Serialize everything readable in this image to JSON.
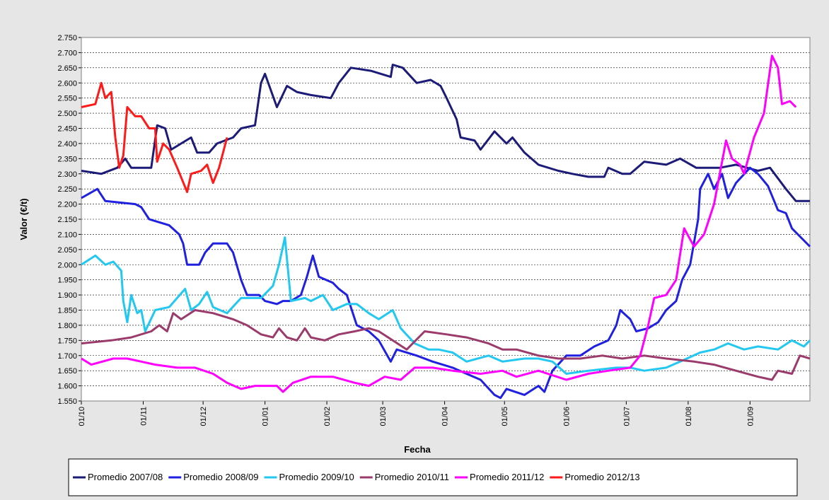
{
  "chart_data": {
    "type": "line",
    "x_label": "Fecha",
    "y_label": "Valor (€/t)",
    "xlim": [
      0,
      365
    ],
    "ylim": [
      1550,
      2750
    ],
    "grid": true,
    "legend": "bottom",
    "xticks": [
      {
        "value": 0,
        "label": "01/10"
      },
      {
        "value": 31,
        "label": "01/11"
      },
      {
        "value": 61,
        "label": "01/12"
      },
      {
        "value": 92,
        "label": "01/01"
      },
      {
        "value": 123,
        "label": "01/02"
      },
      {
        "value": 151,
        "label": "01/03"
      },
      {
        "value": 182,
        "label": "01/04"
      },
      {
        "value": 212,
        "label": "01/05"
      },
      {
        "value": 243,
        "label": "01/06"
      },
      {
        "value": 273,
        "label": "01/07"
      },
      {
        "value": 304,
        "label": "01/08"
      },
      {
        "value": 335,
        "label": "01/09"
      }
    ],
    "yticks": [
      {
        "value": 1550,
        "label": "1.550"
      },
      {
        "value": 1600,
        "label": "1.600"
      },
      {
        "value": 1650,
        "label": "1.650"
      },
      {
        "value": 1700,
        "label": "1.700"
      },
      {
        "value": 1750,
        "label": "1.750"
      },
      {
        "value": 1800,
        "label": "1.800"
      },
      {
        "value": 1850,
        "label": "1.850"
      },
      {
        "value": 1900,
        "label": "1.900"
      },
      {
        "value": 1950,
        "label": "1.950"
      },
      {
        "value": 2000,
        "label": "2.000"
      },
      {
        "value": 2050,
        "label": "2.050"
      },
      {
        "value": 2100,
        "label": "2.100"
      },
      {
        "value": 2150,
        "label": "2.150"
      },
      {
        "value": 2200,
        "label": "2.200"
      },
      {
        "value": 2250,
        "label": "2.250"
      },
      {
        "value": 2300,
        "label": "2.300"
      },
      {
        "value": 2350,
        "label": "2.350"
      },
      {
        "value": 2400,
        "label": "2.400"
      },
      {
        "value": 2450,
        "label": "2.450"
      },
      {
        "value": 2500,
        "label": "2.500"
      },
      {
        "value": 2550,
        "label": "2.550"
      },
      {
        "value": 2600,
        "label": "2.600"
      },
      {
        "value": 2650,
        "label": "2.650"
      },
      {
        "value": 2700,
        "label": "2.700"
      },
      {
        "value": 2750,
        "label": "2.750"
      }
    ],
    "series": [
      {
        "name": "Promedio 2007/08",
        "color": "#1c1c78",
        "x": [
          0,
          10,
          18,
          22,
          25,
          35,
          38,
          42,
          45,
          50,
          55,
          58,
          64,
          68,
          76,
          80,
          87,
          90,
          92,
          98,
          103,
          108,
          115,
          125,
          129,
          135,
          145,
          155,
          156,
          161,
          168,
          175,
          180,
          183,
          188,
          190,
          197,
          200,
          207,
          213,
          216,
          222,
          229,
          239,
          246,
          254,
          262,
          264,
          271,
          275,
          282,
          293,
          300,
          308,
          320,
          328,
          339,
          345,
          353,
          358,
          365
        ],
        "values": [
          2310,
          2300,
          2320,
          2350,
          2320,
          2320,
          2460,
          2450,
          2380,
          2400,
          2420,
          2370,
          2370,
          2400,
          2420,
          2450,
          2460,
          2600,
          2630,
          2520,
          2590,
          2570,
          2560,
          2550,
          2600,
          2650,
          2640,
          2620,
          2660,
          2650,
          2600,
          2610,
          2590,
          2550,
          2480,
          2420,
          2410,
          2380,
          2440,
          2400,
          2420,
          2370,
          2330,
          2310,
          2300,
          2290,
          2290,
          2320,
          2300,
          2300,
          2340,
          2330,
          2350,
          2320,
          2320,
          2330,
          2310,
          2320,
          2250,
          2210,
          2210
        ]
      },
      {
        "name": "Promedio 2008/09",
        "color": "#2020e0",
        "x": [
          0,
          8,
          12,
          27,
          30,
          34,
          39,
          44,
          49,
          51,
          53,
          59,
          62,
          66,
          73,
          76,
          80,
          83,
          89,
          92,
          98,
          101,
          105,
          110,
          113,
          116,
          119,
          126,
          129,
          133,
          135,
          138,
          144,
          149,
          155,
          158,
          168,
          176,
          186,
          193,
          200,
          207,
          210,
          213,
          222,
          229,
          232,
          236,
          243,
          250,
          257,
          264,
          268,
          270,
          275,
          278,
          284,
          289,
          293,
          298,
          301,
          305,
          309,
          310,
          314,
          317,
          321,
          324,
          328,
          335,
          339,
          344,
          349,
          353,
          356,
          362,
          365
        ],
        "values": [
          2220,
          2250,
          2210,
          2200,
          2190,
          2150,
          2140,
          2130,
          2100,
          2070,
          2000,
          2000,
          2040,
          2070,
          2070,
          2040,
          1950,
          1900,
          1900,
          1880,
          1870,
          1880,
          1880,
          1900,
          1960,
          2030,
          1960,
          1940,
          1920,
          1900,
          1860,
          1800,
          1780,
          1750,
          1680,
          1720,
          1700,
          1680,
          1660,
          1640,
          1620,
          1570,
          1560,
          1590,
          1570,
          1600,
          1580,
          1650,
          1700,
          1700,
          1730,
          1750,
          1800,
          1850,
          1820,
          1780,
          1790,
          1810,
          1850,
          1880,
          1950,
          2000,
          2150,
          2250,
          2300,
          2250,
          2300,
          2220,
          2270,
          2320,
          2300,
          2260,
          2180,
          2170,
          2120,
          2080,
          2060
        ]
      },
      {
        "name": "Promedio 2009/10",
        "color": "#22c8f0",
        "x": [
          0,
          7,
          12,
          16,
          20,
          21,
          23,
          25,
          28,
          30,
          32,
          37,
          44,
          52,
          55,
          59,
          63,
          66,
          73,
          80,
          90,
          96,
          99,
          102,
          105,
          112,
          115,
          121,
          126,
          133,
          138,
          144,
          149,
          156,
          160,
          167,
          174,
          179,
          186,
          193,
          204,
          211,
          222,
          229,
          236,
          243,
          254,
          268,
          275,
          282,
          293,
          300,
          310,
          317,
          324,
          332,
          339,
          349,
          356,
          362,
          365
        ],
        "values": [
          2000,
          2030,
          2000,
          2010,
          1980,
          1880,
          1810,
          1900,
          1840,
          1850,
          1780,
          1850,
          1860,
          1920,
          1850,
          1870,
          1910,
          1860,
          1840,
          1890,
          1890,
          1930,
          2000,
          2090,
          1880,
          1890,
          1880,
          1900,
          1850,
          1870,
          1870,
          1840,
          1820,
          1850,
          1790,
          1740,
          1720,
          1720,
          1710,
          1680,
          1700,
          1680,
          1690,
          1690,
          1680,
          1640,
          1650,
          1660,
          1660,
          1650,
          1660,
          1680,
          1710,
          1720,
          1740,
          1720,
          1730,
          1720,
          1750,
          1730,
          1750
        ]
      },
      {
        "name": "Promedio 2010/11",
        "color": "#9b3b6b",
        "x": [
          0,
          15,
          25,
          35,
          39,
          43,
          46,
          50,
          57,
          66,
          76,
          83,
          90,
          96,
          99,
          103,
          108,
          112,
          115,
          122,
          129,
          137,
          144,
          149,
          156,
          163,
          172,
          183,
          193,
          204,
          211,
          218,
          229,
          239,
          250,
          261,
          271,
          282,
          293,
          307,
          317,
          328,
          339,
          346,
          349,
          356,
          360,
          365
        ],
        "values": [
          1740,
          1750,
          1760,
          1780,
          1800,
          1780,
          1840,
          1820,
          1850,
          1840,
          1820,
          1800,
          1770,
          1760,
          1790,
          1760,
          1750,
          1790,
          1760,
          1750,
          1770,
          1780,
          1790,
          1780,
          1750,
          1720,
          1780,
          1770,
          1760,
          1740,
          1720,
          1720,
          1700,
          1690,
          1690,
          1700,
          1690,
          1700,
          1690,
          1680,
          1670,
          1650,
          1630,
          1620,
          1650,
          1640,
          1700,
          1690
        ]
      },
      {
        "name": "Promedio 2011/12",
        "color": "#ff00ff",
        "x": [
          0,
          5,
          16,
          23,
          30,
          37,
          48,
          57,
          66,
          73,
          80,
          87,
          98,
          101,
          106,
          115,
          126,
          137,
          144,
          152,
          160,
          167,
          176,
          186,
          200,
          211,
          218,
          229,
          243,
          254,
          264,
          275,
          280,
          284,
          287,
          293,
          298,
          302,
          307,
          312,
          317,
          323,
          326,
          330,
          332,
          337,
          342,
          346,
          349,
          351,
          355,
          358
        ],
        "values": [
          1690,
          1670,
          1690,
          1690,
          1680,
          1670,
          1660,
          1660,
          1640,
          1610,
          1590,
          1600,
          1600,
          1580,
          1610,
          1630,
          1630,
          1610,
          1600,
          1630,
          1620,
          1660,
          1660,
          1650,
          1640,
          1650,
          1630,
          1650,
          1620,
          1640,
          1650,
          1660,
          1700,
          1800,
          1890,
          1900,
          1950,
          2120,
          2060,
          2100,
          2200,
          2410,
          2350,
          2330,
          2300,
          2420,
          2500,
          2690,
          2650,
          2530,
          2540,
          2520
        ]
      },
      {
        "name": "Promedio 2012/13",
        "color": "#ff1a1a",
        "x": [
          0,
          7,
          10,
          12,
          15,
          17,
          19,
          21,
          23,
          27,
          30,
          34,
          37,
          38,
          41,
          44,
          48,
          53,
          55,
          60,
          63,
          66,
          69,
          73
        ],
        "values": [
          2520,
          2530,
          2600,
          2550,
          2570,
          2420,
          2320,
          2360,
          2520,
          2490,
          2490,
          2450,
          2450,
          2340,
          2400,
          2380,
          2320,
          2240,
          2300,
          2310,
          2330,
          2270,
          2320,
          2420
        ]
      }
    ]
  }
}
